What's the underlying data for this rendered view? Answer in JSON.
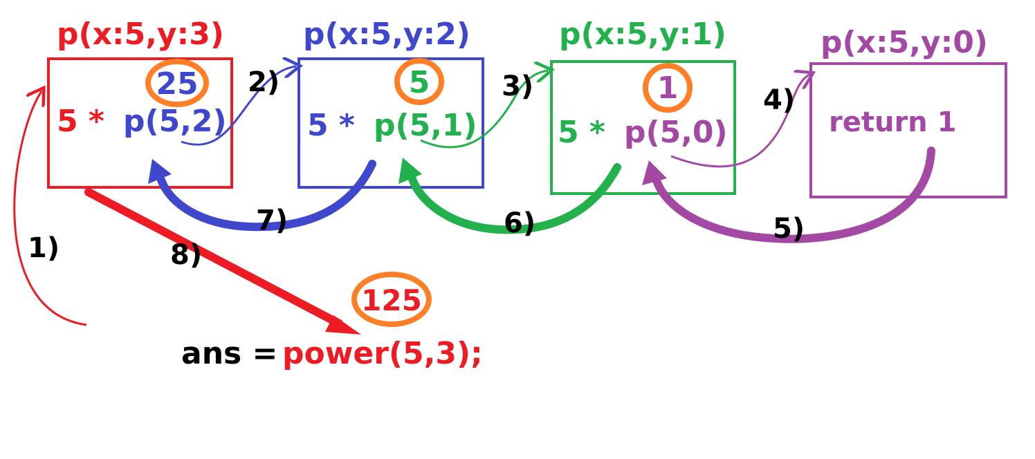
{
  "colors": {
    "red": "#ED1C24",
    "blue": "#3F48CC",
    "green": "#22B14C",
    "purple": "#A349A4",
    "orange": "#FF7F27",
    "black": "#000000"
  },
  "frames": [
    {
      "title": "p(x:5,y:3)",
      "mult": "5 *",
      "call": "p(5,2)",
      "result": "25"
    },
    {
      "title": "p(x:5,y:2)",
      "mult": "5 *",
      "call": "p(5,1)",
      "result": "5"
    },
    {
      "title": "p(x:5,y:1)",
      "mult": "5 *",
      "call": "p(5,0)",
      "result": "1"
    },
    {
      "title": "p(x:5,y:0)",
      "return": "return 1"
    }
  ],
  "steps": [
    "1)",
    "2)",
    "3)",
    "4)",
    "5)",
    "6)",
    "7)",
    "8)"
  ],
  "final_result": "125",
  "expression": {
    "lhs": "ans =",
    "call": "power(5,3);"
  }
}
